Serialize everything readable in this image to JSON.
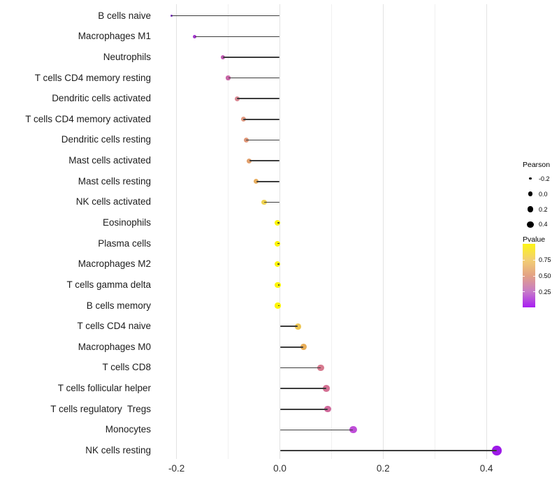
{
  "chart_data": {
    "type": "scatter",
    "variant": "lollipop",
    "title": "",
    "xlabel": "",
    "ylabel": "",
    "x_axis": {
      "tick_labels": [
        "-0.2",
        "0.0",
        "0.2",
        "0.4"
      ],
      "tick_values": [
        -0.2,
        0.0,
        0.2,
        0.4
      ],
      "minor_gridline_values": [
        -0.1,
        0.1,
        0.3
      ],
      "range": [
        -0.245,
        0.45
      ],
      "grid": true
    },
    "rows": [
      {
        "label": "B cells naive",
        "pearson": -0.21,
        "pvalue_approx": 0.1,
        "color": "#8228d8"
      },
      {
        "label": "Macrophages M1",
        "pearson": -0.165,
        "pvalue_approx": 0.17,
        "color": "#a438cf"
      },
      {
        "label": "Neutrophils",
        "pearson": -0.11,
        "pvalue_approx": 0.28,
        "color": "#c058b2"
      },
      {
        "label": "T cells CD4 memory resting",
        "pearson": -0.1,
        "pvalue_approx": 0.32,
        "color": "#c967a7"
      },
      {
        "label": "Dendritic cells activated",
        "pearson": -0.083,
        "pvalue_approx": 0.42,
        "color": "#d98994"
      },
      {
        "label": "T cells CD4 memory activated",
        "pearson": -0.071,
        "pvalue_approx": 0.48,
        "color": "#e0987f"
      },
      {
        "label": "Dendritic cells resting",
        "pearson": -0.065,
        "pvalue_approx": 0.52,
        "color": "#de9678"
      },
      {
        "label": "Mast cells activated",
        "pearson": -0.059,
        "pvalue_approx": 0.56,
        "color": "#e2a06d"
      },
      {
        "label": "Mast cells resting",
        "pearson": -0.046,
        "pvalue_approx": 0.62,
        "color": "#e7ad5e"
      },
      {
        "label": "NK cells activated",
        "pearson": -0.03,
        "pvalue_approx": 0.73,
        "color": "#efd250"
      },
      {
        "label": "Eosinophils",
        "pearson": -0.005,
        "pvalue_approx": 0.95,
        "color": "#fdf404"
      },
      {
        "label": "Plasma cells",
        "pearson": -0.005,
        "pvalue_approx": 0.95,
        "color": "#fdf404"
      },
      {
        "label": "Macrophages M2",
        "pearson": -0.005,
        "pvalue_approx": 0.95,
        "color": "#fdf404"
      },
      {
        "label": "T cells gamma delta",
        "pearson": -0.004,
        "pvalue_approx": 0.96,
        "color": "#fdf404"
      },
      {
        "label": "B cells memory",
        "pearson": -0.004,
        "pvalue_approx": 0.95,
        "color": "#fdf404"
      },
      {
        "label": "T cells CD4 naive",
        "pearson": 0.035,
        "pvalue_approx": 0.7,
        "color": "#edc653"
      },
      {
        "label": "Macrophages M0",
        "pearson": 0.046,
        "pvalue_approx": 0.62,
        "color": "#e8ad58"
      },
      {
        "label": "T cells CD8",
        "pearson": 0.079,
        "pvalue_approx": 0.42,
        "color": "#d6798e"
      },
      {
        "label": "T cells follicular helper",
        "pearson": 0.09,
        "pvalue_approx": 0.38,
        "color": "#d37093"
      },
      {
        "label": "T cells regulatory  Tregs",
        "pearson": 0.093,
        "pvalue_approx": 0.34,
        "color": "#d0699b"
      },
      {
        "label": "Monocytes",
        "pearson": 0.142,
        "pvalue_approx": 0.15,
        "color": "#bf4ed8"
      },
      {
        "label": "NK cells resting",
        "pearson": 0.42,
        "pvalue_approx": 0.03,
        "color": "#9d1ae8"
      }
    ],
    "legend_position": "right"
  },
  "legend": {
    "size": {
      "title": "Pearson",
      "entries": [
        {
          "label": "-0.2",
          "value": -0.2,
          "diameter": 3.4
        },
        {
          "label": "0.0",
          "value": 0.0,
          "diameter": 6.6
        },
        {
          "label": "0.2",
          "value": 0.2,
          "diameter": 8.3
        },
        {
          "label": "0.4",
          "value": 0.4,
          "diameter": 9.4
        }
      ]
    },
    "color": {
      "title": "Pvalue",
      "tick_labels": [
        "0.75",
        "0.50",
        "0.25"
      ],
      "tick_fractions_from_top": [
        0.25,
        0.5,
        0.75
      ],
      "gradient_top_to_bottom": [
        "#fdf515",
        "#f3cf72",
        "#e3a285",
        "#c77bc8",
        "#a81ef2"
      ]
    },
    "stem_color": "#3c3c3c",
    "background": "#ffffff"
  }
}
